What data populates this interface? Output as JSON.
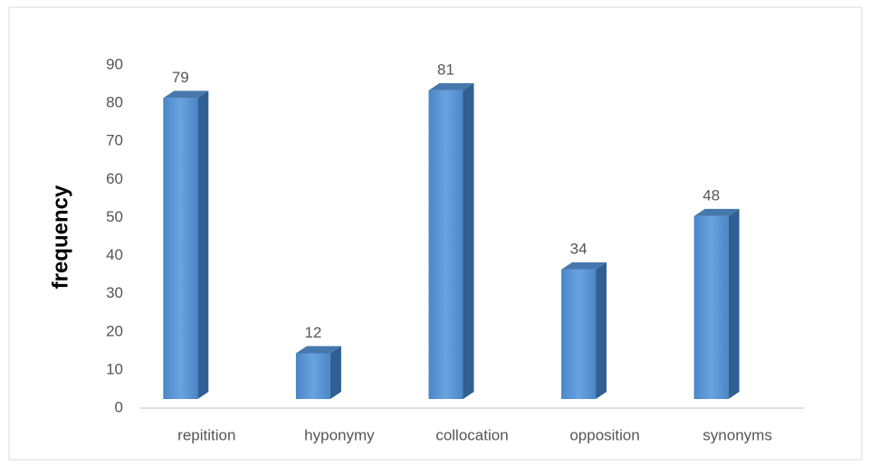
{
  "chart_data": {
    "type": "bar3d",
    "ylabel": "frequency",
    "categories": [
      "repitition",
      "hyponymy",
      "collocation",
      "opposition",
      "synonyms"
    ],
    "values": [
      79,
      12,
      81,
      34,
      48
    ],
    "color": "#5b9bd5",
    "ylim": [
      0,
      90
    ],
    "yticks": [
      0,
      10,
      20,
      30,
      40,
      50,
      60,
      70,
      80,
      90
    ],
    "grid": false
  }
}
